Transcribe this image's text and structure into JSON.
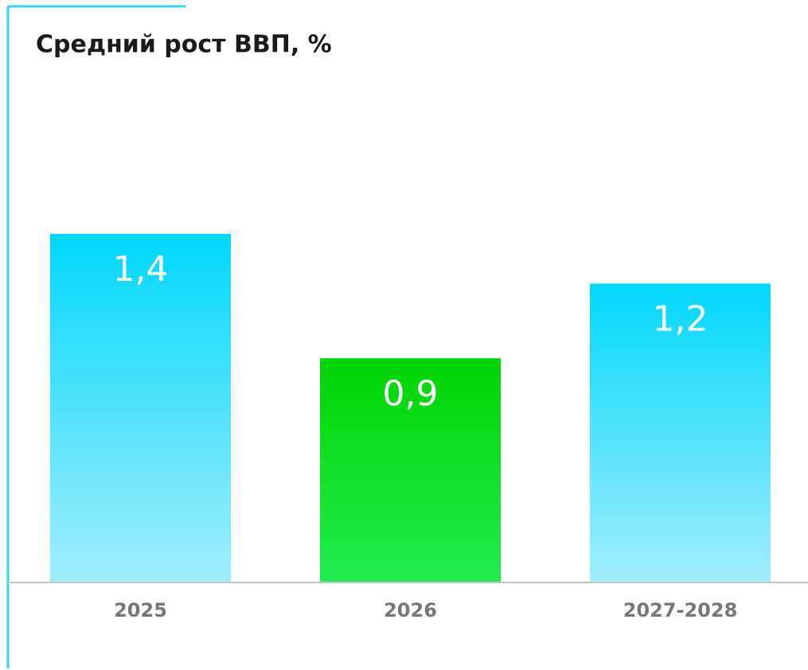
{
  "chart_data": {
    "type": "bar",
    "title": "Средний рост ВВП, %",
    "categories": [
      "2025",
      "2026",
      "2027-2028"
    ],
    "values": [
      1.4,
      0.9,
      1.2
    ],
    "value_labels": [
      "1,4",
      "0,9",
      "1,2"
    ],
    "colors": [
      [
        "#00d8fa",
        "#a2edfd"
      ],
      [
        "#00d400",
        "#22ec52"
      ],
      [
        "#00d8fa",
        "#a2edfd"
      ]
    ],
    "ylim": [
      0,
      2
    ]
  }
}
